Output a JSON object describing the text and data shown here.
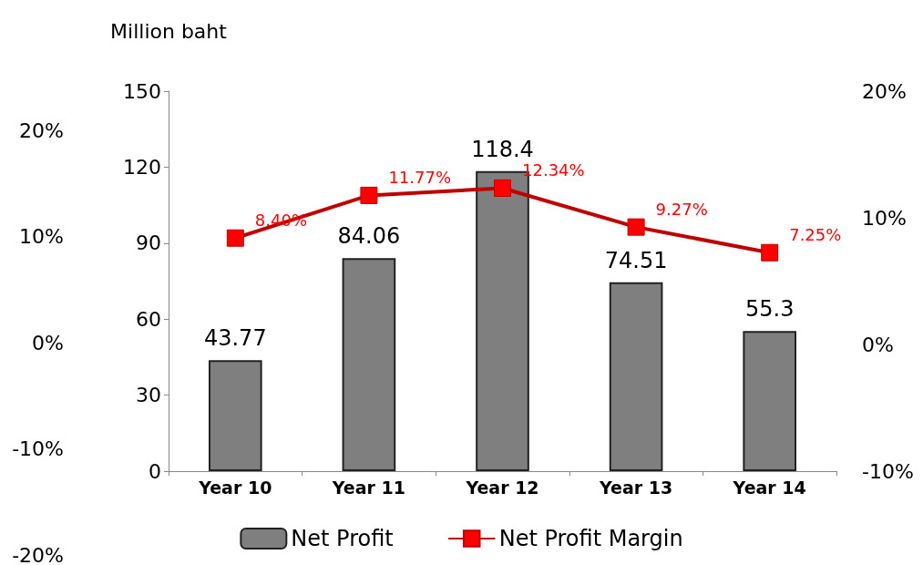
{
  "chart_data": {
    "type": "bar",
    "ylabel": "Million baht",
    "categories": [
      "Year 10",
      "Year 11",
      "Year 12",
      "Year 13",
      "Year 14"
    ],
    "series": [
      {
        "name": "Net Profit",
        "color": "#7f7f7f",
        "values": [
          43.77,
          84.06,
          118.4,
          74.51,
          55.3
        ],
        "value_labels": [
          "43.77",
          "84.06",
          "118.4",
          "74.51",
          "55.3"
        ]
      },
      {
        "name": "Net Profit Margin",
        "type": "line",
        "axis": "y2",
        "color": "#c00000",
        "marker": "square",
        "values": [
          8.4,
          11.77,
          12.34,
          9.27,
          7.25
        ],
        "value_labels": [
          "8.40%",
          "11.77%",
          "12.34%",
          "9.27%",
          "7.25%"
        ]
      }
    ],
    "ylim": [
      0,
      150
    ],
    "yticks": [
      0,
      30,
      60,
      90,
      120,
      150
    ],
    "y2lim": [
      -10,
      20
    ],
    "y2ticks": [
      {
        "value": -10,
        "label": "-10%"
      },
      {
        "value": 0,
        "label": "0%"
      },
      {
        "value": 10,
        "label": "10%"
      },
      {
        "value": 20,
        "label": "20%"
      }
    ],
    "y3lim": [
      -20,
      20
    ],
    "y3ticks": [
      {
        "value": -20,
        "label": "-20%"
      },
      {
        "value": -10,
        "label": "-10%"
      },
      {
        "value": 0,
        "label": "0%"
      },
      {
        "value": 10,
        "label": "10%"
      },
      {
        "value": 20,
        "label": "20%"
      }
    ],
    "grid": false,
    "legend": "bottom"
  }
}
